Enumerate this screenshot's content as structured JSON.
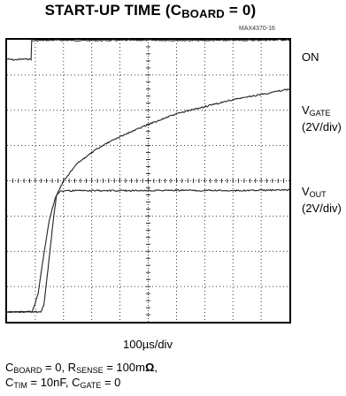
{
  "chart_data": {
    "type": "line",
    "title": {
      "main": "START-UP TIME (C",
      "sub": "BOARD",
      "tail": " = 0)"
    },
    "figure_id": "MAX4370-16",
    "xlabel": "100µs/div",
    "grid": true,
    "x_divisions": 10,
    "y_divisions": 8,
    "series": [
      {
        "name": "ON",
        "name_sub": "",
        "scale": "",
        "points": [
          [
            0,
            7.45
          ],
          [
            0.25,
            7.43
          ],
          [
            0.55,
            7.45
          ],
          [
            0.85,
            7.45
          ],
          [
            0.87,
            7.97
          ],
          [
            1.5,
            7.99
          ],
          [
            3,
            7.98
          ],
          [
            5,
            7.99
          ],
          [
            7,
            7.98
          ],
          [
            9,
            7.99
          ],
          [
            10,
            8.0
          ]
        ]
      },
      {
        "name": "V",
        "name_sub": "GATE",
        "scale": "(2V/div)",
        "points": [
          [
            0,
            0.28
          ],
          [
            0.7,
            0.28
          ],
          [
            0.9,
            0.3
          ],
          [
            1.1,
            0.8
          ],
          [
            1.3,
            1.9
          ],
          [
            1.5,
            2.9
          ],
          [
            1.7,
            3.5
          ],
          [
            2,
            4.0
          ],
          [
            2.5,
            4.5
          ],
          [
            3,
            4.8
          ],
          [
            3.5,
            5.05
          ],
          [
            4,
            5.25
          ],
          [
            5,
            5.6
          ],
          [
            6,
            5.9
          ],
          [
            7,
            6.1
          ],
          [
            8,
            6.3
          ],
          [
            9,
            6.45
          ],
          [
            10,
            6.6
          ]
        ]
      },
      {
        "name": "V",
        "name_sub": "OUT",
        "scale": "(2V/div)",
        "points": [
          [
            0,
            0.28
          ],
          [
            1.2,
            0.28
          ],
          [
            1.3,
            0.45
          ],
          [
            1.45,
            1.5
          ],
          [
            1.6,
            2.6
          ],
          [
            1.75,
            3.6
          ],
          [
            1.9,
            3.72
          ],
          [
            2.5,
            3.72
          ],
          [
            4,
            3.72
          ],
          [
            6,
            3.73
          ],
          [
            8,
            3.72
          ],
          [
            10,
            3.74
          ]
        ]
      }
    ],
    "conditions": {
      "line1": [
        {
          "t": "C"
        },
        {
          "s": "BOARD"
        },
        {
          "t": " = 0, R"
        },
        {
          "s": "SENSE"
        },
        {
          "t": " = 100m"
        },
        {
          "b": "Ω"
        },
        {
          "t": ","
        }
      ],
      "line2": [
        {
          "t": "C"
        },
        {
          "s": "TIM"
        },
        {
          "t": " = 10nF, C"
        },
        {
          "s": "GATE"
        },
        {
          "t": " = 0"
        }
      ]
    },
    "colors": {
      "trace": "#222222",
      "grid": "#000000",
      "frame": "#000000"
    }
  }
}
